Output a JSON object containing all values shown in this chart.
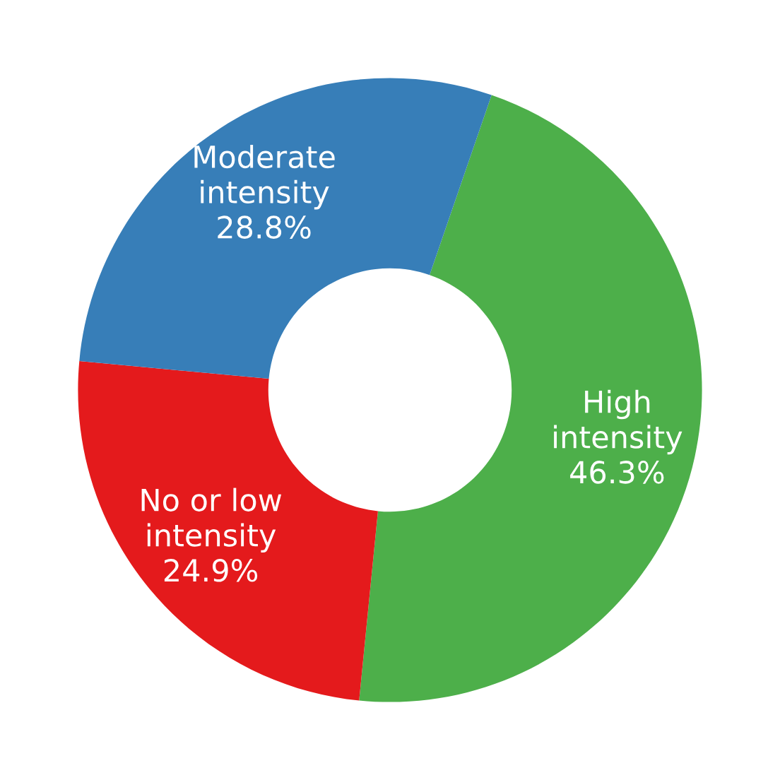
{
  "chart_data": {
    "type": "donut",
    "categories": [
      "High intensity",
      "No or low intensity",
      "Moderate intensity"
    ],
    "values": [
      46.3,
      24.9,
      28.8
    ],
    "colors": [
      "#4daf4a",
      "#e41a1c",
      "#377eb8"
    ],
    "value_labels": [
      "46.3%",
      "24.9%",
      "28.8%"
    ]
  }
}
